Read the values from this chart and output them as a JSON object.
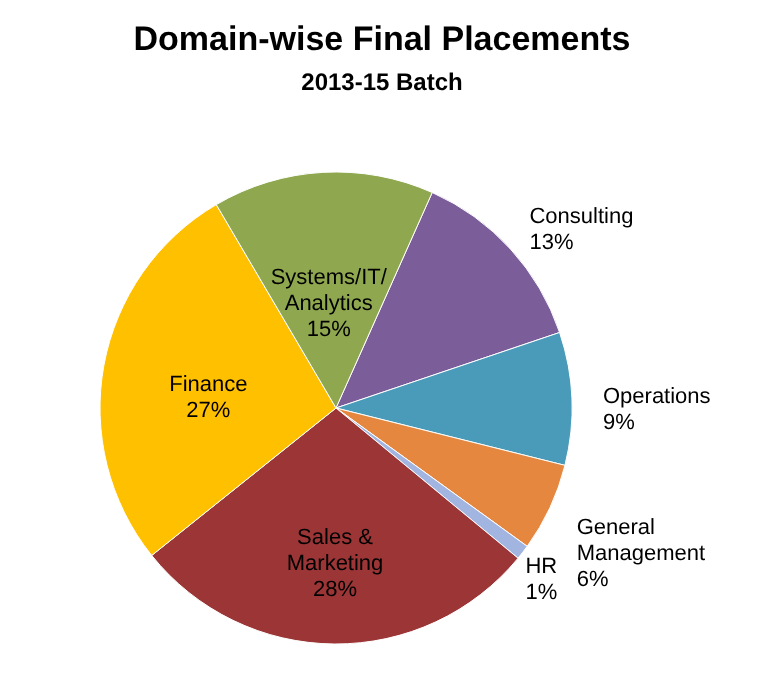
{
  "chart_data": {
    "type": "pie",
    "title": "Domain-wise Final Placements",
    "subtitle": "2013-15 Batch",
    "categories": [
      "Consulting",
      "Operations",
      "General Management",
      "HR",
      "Sales & Marketing",
      "Finance",
      "Systems/IT/Analytics"
    ],
    "values": [
      13,
      9,
      6,
      1,
      28,
      27,
      15
    ],
    "value_labels": [
      "13%",
      "9%",
      "6%",
      "1%",
      "28%",
      "27%",
      "15%"
    ],
    "colors": [
      "#7b5d99",
      "#4a9bb9",
      "#e5873f",
      "#a1b5e0",
      "#9b3536",
      "#ffc000",
      "#8fa84f"
    ]
  }
}
